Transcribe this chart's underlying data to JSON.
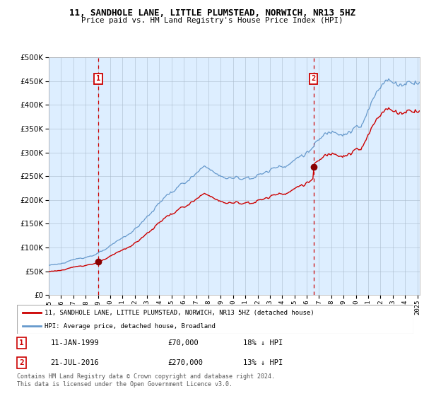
{
  "title": "11, SANDHOLE LANE, LITTLE PLUMSTEAD, NORWICH, NR13 5HZ",
  "subtitle": "Price paid vs. HM Land Registry's House Price Index (HPI)",
  "legend_line1": "11, SANDHOLE LANE, LITTLE PLUMSTEAD, NORWICH, NR13 5HZ (detached house)",
  "legend_line2": "HPI: Average price, detached house, Broadland",
  "annotation1_date": "11-JAN-1999",
  "annotation1_price": "£70,000",
  "annotation1_hpi": "18% ↓ HPI",
  "annotation2_date": "21-JUL-2016",
  "annotation2_price": "£270,000",
  "annotation2_hpi": "13% ↓ HPI",
  "footer": "Contains HM Land Registry data © Crown copyright and database right 2024.\nThis data is licensed under the Open Government Licence v3.0.",
  "property_line_color": "#cc0000",
  "hpi_line_color": "#6699cc",
  "background_color": "#ddeeff",
  "sale1_year": 1999.03,
  "sale1_value": 70000,
  "sale2_year": 2016.55,
  "sale2_value": 270000,
  "ylim_max": 500000,
  "yticks": [
    0,
    50000,
    100000,
    150000,
    200000,
    250000,
    300000,
    350000,
    400000,
    450000,
    500000
  ],
  "start_year": 1995,
  "end_year": 2025
}
